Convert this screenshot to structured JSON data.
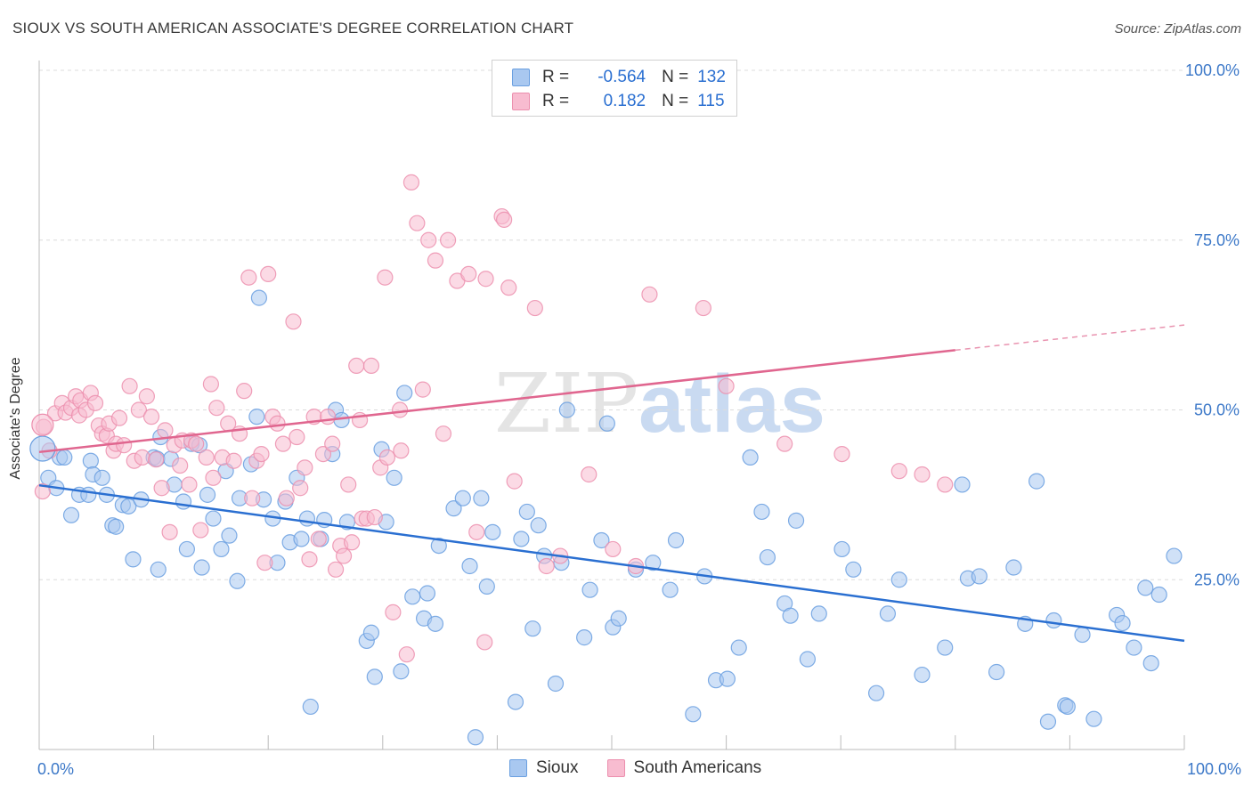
{
  "header": {
    "title": "SIOUX VS SOUTH AMERICAN ASSOCIATE'S DEGREE CORRELATION CHART",
    "source": "Source: ZipAtlas.com"
  },
  "watermark": {
    "zip": "ZIP",
    "atlas": "atlas"
  },
  "legend": {
    "rows": [
      {
        "r_label": "R =",
        "r_value": "-0.564",
        "n_label": "N =",
        "n_value": "132",
        "color": "#a9c8f0",
        "border": "#6a9fe0"
      },
      {
        "r_label": "R =",
        "r_value": "0.182",
        "n_label": "N =",
        "n_value": "115",
        "color": "#f8bcd0",
        "border": "#ec8fae"
      }
    ]
  },
  "bottom_legend": {
    "sioux": "Sioux",
    "south_americans": "South Americans"
  },
  "chart_data": {
    "type": "scatter",
    "title": "SIOUX VS SOUTH AMERICAN ASSOCIATE'S DEGREE CORRELATION CHART",
    "xlabel": "",
    "ylabel": "Associate's Degree",
    "xlim": [
      0,
      100
    ],
    "ylim": [
      0,
      100
    ],
    "x_tick_labels": {
      "left": "0.0%",
      "right": "100.0%"
    },
    "y_ticks": [
      {
        "value": 25,
        "label": "25.0%"
      },
      {
        "value": 50,
        "label": "50.0%"
      },
      {
        "value": 75,
        "label": "75.0%"
      },
      {
        "value": 100,
        "label": "100.0%"
      }
    ],
    "grid": true,
    "legend_position": "top-center",
    "series": [
      {
        "name": "Sioux",
        "color": "#6a9fe0",
        "fill": "#a9c8f0",
        "trend": {
          "x": [
            0,
            100
          ],
          "y": [
            38.9,
            16.0
          ],
          "style": "solid",
          "color": "#2a6fd1"
        },
        "points": [
          [
            0.8,
            40.0
          ],
          [
            1.5,
            38.5
          ],
          [
            1.8,
            43.0
          ],
          [
            2.2,
            43.0
          ],
          [
            2.8,
            34.5
          ],
          [
            3.5,
            37.5
          ],
          [
            4.3,
            37.5
          ],
          [
            4.5,
            42.5
          ],
          [
            4.7,
            40.5
          ],
          [
            5.5,
            40.0
          ],
          [
            5.9,
            37.5
          ],
          [
            6.4,
            33.0
          ],
          [
            6.7,
            32.8
          ],
          [
            7.3,
            36.0
          ],
          [
            7.8,
            35.8
          ],
          [
            8.2,
            28.0
          ],
          [
            8.9,
            36.8
          ],
          [
            10.0,
            43.0
          ],
          [
            10.3,
            42.8
          ],
          [
            10.4,
            26.5
          ],
          [
            10.6,
            46.0
          ],
          [
            11.5,
            42.8
          ],
          [
            11.8,
            39.0
          ],
          [
            12.6,
            36.5
          ],
          [
            12.9,
            29.5
          ],
          [
            13.3,
            45.0
          ],
          [
            14.0,
            44.8
          ],
          [
            14.2,
            26.8
          ],
          [
            14.7,
            37.5
          ],
          [
            15.2,
            34.0
          ],
          [
            15.9,
            29.5
          ],
          [
            16.3,
            41.0
          ],
          [
            16.6,
            31.5
          ],
          [
            17.3,
            24.8
          ],
          [
            17.5,
            37.0
          ],
          [
            18.5,
            42.0
          ],
          [
            19.0,
            49.0
          ],
          [
            19.2,
            66.5
          ],
          [
            19.6,
            36.8
          ],
          [
            20.4,
            34.0
          ],
          [
            20.8,
            27.5
          ],
          [
            21.5,
            36.5
          ],
          [
            21.9,
            30.5
          ],
          [
            22.5,
            40.0
          ],
          [
            22.9,
            31.0
          ],
          [
            23.4,
            34.0
          ],
          [
            23.7,
            6.3
          ],
          [
            24.6,
            31.0
          ],
          [
            24.9,
            33.8
          ],
          [
            25.6,
            43.5
          ],
          [
            25.9,
            50.0
          ],
          [
            26.4,
            48.5
          ],
          [
            26.9,
            33.5
          ],
          [
            28.6,
            16.0
          ],
          [
            29.0,
            17.2
          ],
          [
            29.3,
            10.7
          ],
          [
            29.9,
            44.2
          ],
          [
            30.3,
            33.5
          ],
          [
            31.0,
            40.0
          ],
          [
            31.6,
            11.5
          ],
          [
            31.9,
            52.5
          ],
          [
            32.6,
            22.5
          ],
          [
            33.6,
            19.3
          ],
          [
            33.9,
            23.0
          ],
          [
            34.6,
            18.5
          ],
          [
            34.9,
            30.0
          ],
          [
            36.2,
            35.5
          ],
          [
            37.0,
            37.0
          ],
          [
            37.6,
            27.0
          ],
          [
            38.1,
            1.8
          ],
          [
            38.6,
            37.0
          ],
          [
            39.1,
            24.0
          ],
          [
            39.6,
            32.0
          ],
          [
            41.6,
            7.0
          ],
          [
            42.1,
            31.0
          ],
          [
            42.6,
            35.0
          ],
          [
            43.1,
            17.8
          ],
          [
            43.6,
            33.0
          ],
          [
            44.1,
            28.5
          ],
          [
            45.1,
            9.7
          ],
          [
            45.6,
            27.5
          ],
          [
            46.1,
            50.0
          ],
          [
            47.6,
            16.5
          ],
          [
            48.1,
            23.5
          ],
          [
            49.1,
            30.8
          ],
          [
            49.6,
            48.0
          ],
          [
            50.1,
            18.0
          ],
          [
            50.6,
            19.3
          ],
          [
            52.1,
            26.5
          ],
          [
            53.6,
            27.5
          ],
          [
            55.1,
            23.5
          ],
          [
            55.6,
            30.8
          ],
          [
            57.1,
            5.2
          ],
          [
            58.1,
            25.5
          ],
          [
            59.1,
            10.2
          ],
          [
            60.1,
            10.4
          ],
          [
            61.1,
            15.0
          ],
          [
            62.1,
            43.0
          ],
          [
            63.1,
            35.0
          ],
          [
            63.6,
            28.3
          ],
          [
            65.1,
            21.5
          ],
          [
            65.6,
            19.7
          ],
          [
            66.1,
            33.7
          ],
          [
            67.1,
            13.3
          ],
          [
            68.1,
            20.0
          ],
          [
            70.1,
            29.5
          ],
          [
            71.1,
            26.5
          ],
          [
            73.1,
            8.3
          ],
          [
            74.1,
            20.0
          ],
          [
            75.1,
            25.0
          ],
          [
            77.1,
            11.0
          ],
          [
            79.1,
            15.0
          ],
          [
            80.6,
            39.0
          ],
          [
            81.1,
            25.2
          ],
          [
            82.1,
            25.5
          ],
          [
            83.6,
            11.4
          ],
          [
            85.1,
            26.8
          ],
          [
            86.1,
            18.5
          ],
          [
            87.1,
            39.5
          ],
          [
            88.1,
            4.1
          ],
          [
            88.6,
            19.0
          ],
          [
            89.6,
            6.5
          ],
          [
            89.8,
            6.3
          ],
          [
            91.1,
            16.9
          ],
          [
            92.1,
            4.5
          ],
          [
            94.1,
            19.8
          ],
          [
            94.6,
            18.6
          ],
          [
            95.6,
            15.0
          ],
          [
            96.6,
            23.8
          ],
          [
            99.1,
            28.5
          ],
          [
            97.1,
            12.7
          ],
          [
            97.8,
            22.8
          ]
        ]
      },
      {
        "name": "South Americans",
        "color": "#ec8fae",
        "fill": "#f8bcd0",
        "trend": {
          "x": [
            0,
            80
          ],
          "y": [
            43.8,
            58.8
          ],
          "style": "solid",
          "dashed_to": {
            "x": 100,
            "y": 62.5
          },
          "color": "#e0668f"
        },
        "points": [
          [
            0.3,
            38.0
          ],
          [
            0.4,
            47.5
          ],
          [
            0.9,
            44.0
          ],
          [
            1.4,
            49.5
          ],
          [
            2.0,
            51.0
          ],
          [
            2.3,
            49.6
          ],
          [
            2.8,
            50.3
          ],
          [
            3.2,
            52.0
          ],
          [
            3.5,
            49.2
          ],
          [
            3.6,
            51.4
          ],
          [
            4.1,
            50.0
          ],
          [
            4.5,
            52.5
          ],
          [
            4.9,
            51.0
          ],
          [
            5.2,
            47.7
          ],
          [
            5.5,
            46.5
          ],
          [
            5.9,
            46.2
          ],
          [
            6.1,
            48.0
          ],
          [
            6.5,
            44.0
          ],
          [
            6.7,
            45.0
          ],
          [
            7.0,
            48.8
          ],
          [
            7.4,
            44.8
          ],
          [
            7.9,
            53.5
          ],
          [
            8.3,
            42.5
          ],
          [
            8.7,
            50.0
          ],
          [
            9.0,
            43.0
          ],
          [
            9.4,
            52.0
          ],
          [
            9.8,
            49.0
          ],
          [
            10.2,
            42.7
          ],
          [
            10.7,
            38.5
          ],
          [
            11.0,
            47.0
          ],
          [
            11.4,
            32.0
          ],
          [
            11.8,
            44.8
          ],
          [
            12.3,
            41.8
          ],
          [
            12.5,
            45.5
          ],
          [
            13.1,
            39.0
          ],
          [
            13.3,
            45.5
          ],
          [
            13.7,
            45.0
          ],
          [
            14.1,
            32.3
          ],
          [
            14.6,
            43.0
          ],
          [
            15.0,
            53.8
          ],
          [
            15.2,
            40.0
          ],
          [
            15.5,
            50.3
          ],
          [
            16.0,
            43.0
          ],
          [
            16.5,
            48.0
          ],
          [
            17.0,
            42.5
          ],
          [
            17.5,
            46.5
          ],
          [
            17.9,
            52.8
          ],
          [
            18.3,
            69.5
          ],
          [
            18.6,
            37.0
          ],
          [
            19.0,
            42.5
          ],
          [
            19.4,
            43.5
          ],
          [
            19.7,
            27.5
          ],
          [
            20.0,
            70.0
          ],
          [
            20.4,
            49.0
          ],
          [
            20.8,
            48.0
          ],
          [
            21.3,
            45.0
          ],
          [
            21.6,
            37.0
          ],
          [
            22.2,
            63.0
          ],
          [
            22.5,
            46.0
          ],
          [
            22.8,
            38.5
          ],
          [
            23.2,
            41.5
          ],
          [
            23.6,
            28.0
          ],
          [
            24.0,
            49.0
          ],
          [
            24.4,
            31.0
          ],
          [
            24.8,
            43.5
          ],
          [
            25.2,
            49.0
          ],
          [
            25.6,
            45.0
          ],
          [
            25.9,
            26.5
          ],
          [
            26.3,
            30.0
          ],
          [
            26.6,
            28.5
          ],
          [
            27.0,
            39.0
          ],
          [
            27.3,
            30.5
          ],
          [
            27.7,
            56.5
          ],
          [
            28.0,
            48.5
          ],
          [
            28.2,
            34.0
          ],
          [
            28.6,
            34.0
          ],
          [
            29.0,
            56.5
          ],
          [
            29.3,
            34.2
          ],
          [
            29.8,
            41.5
          ],
          [
            30.2,
            69.5
          ],
          [
            30.4,
            43.0
          ],
          [
            30.9,
            20.2
          ],
          [
            31.5,
            50.0
          ],
          [
            31.6,
            44.0
          ],
          [
            32.1,
            14.0
          ],
          [
            32.5,
            83.5
          ],
          [
            33.0,
            77.5
          ],
          [
            33.5,
            53.0
          ],
          [
            34.0,
            75.0
          ],
          [
            34.6,
            72.0
          ],
          [
            35.3,
            46.5
          ],
          [
            35.7,
            75.0
          ],
          [
            36.5,
            69.0
          ],
          [
            37.5,
            70.0
          ],
          [
            38.2,
            32.0
          ],
          [
            38.9,
            15.8
          ],
          [
            39.0,
            69.3
          ],
          [
            40.4,
            78.5
          ],
          [
            40.6,
            78.0
          ],
          [
            41.0,
            68.0
          ],
          [
            41.5,
            39.5
          ],
          [
            43.3,
            65.0
          ],
          [
            44.3,
            27.0
          ],
          [
            45.5,
            28.5
          ],
          [
            48.0,
            40.5
          ],
          [
            50.1,
            29.5
          ],
          [
            52.1,
            27.0
          ],
          [
            53.3,
            67.0
          ],
          [
            58.0,
            65.0
          ],
          [
            60.0,
            53.5
          ],
          [
            65.1,
            45.0
          ],
          [
            70.1,
            43.5
          ],
          [
            75.1,
            41.0
          ],
          [
            77.1,
            40.5
          ],
          [
            79.1,
            39.0
          ]
        ]
      }
    ]
  }
}
